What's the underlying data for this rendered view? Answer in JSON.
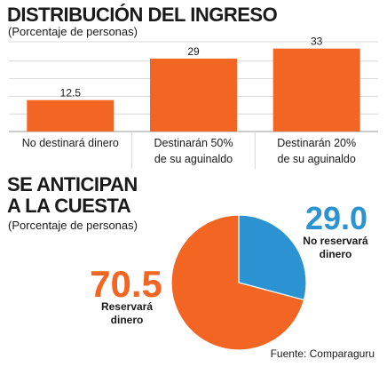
{
  "colors": {
    "orange": "#F26522",
    "blue": "#2B93D1",
    "grid": "#D8D8D8",
    "text": "#1a1a1a"
  },
  "chart_data": [
    {
      "type": "bar",
      "title": "DISTRIBUCIÓN DEL INGRESO",
      "subtitle": "(Porcentaje de personas)",
      "categories": [
        "No destinará dinero",
        "Destinarán 50% de su aguinaldo",
        "Destinarán 20% de su aguinaldo"
      ],
      "category_lines": [
        [
          "No destinará dinero"
        ],
        [
          "Destinarán 50%",
          "de su aguinaldo"
        ],
        [
          "Destinarán 20%",
          "de su aguinaldo"
        ]
      ],
      "values": [
        12.5,
        29,
        33
      ],
      "value_labels": [
        "12.5",
        "29",
        "33"
      ],
      "ylim": [
        0,
        35
      ],
      "grid": true
    },
    {
      "type": "pie",
      "title": "SE ANTICIPAN A LA CUESTA",
      "subtitle": "(Porcentaje de personas)",
      "slices": [
        {
          "label": "No reservará dinero",
          "value": 29.0,
          "display": "29.0",
          "color": "#2B93D1"
        },
        {
          "label": "Reservará dinero",
          "value": 70.5,
          "display": "70.5",
          "color": "#F26522"
        }
      ]
    }
  ],
  "pie_label_lines": {
    "blue": [
      "No reservará",
      "dinero"
    ],
    "orange": [
      "Reservará",
      "dinero"
    ]
  },
  "source": "Fuente: Comparaguru"
}
